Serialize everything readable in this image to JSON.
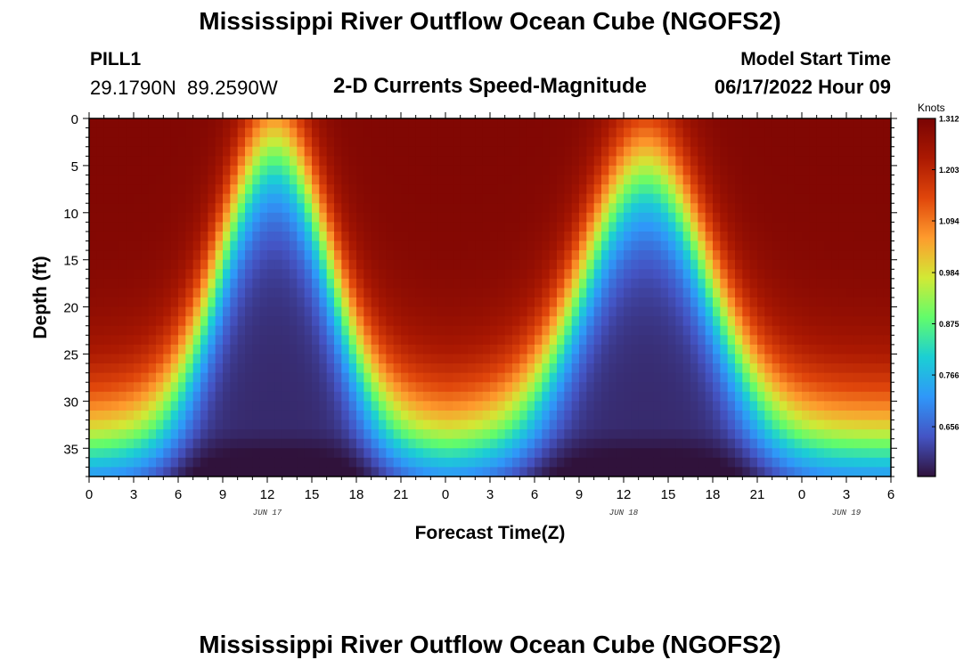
{
  "header": {
    "title": "Mississippi River Outflow Ocean Cube (NGOFS2)",
    "station_id": "PILL1",
    "lat": "29.1790N",
    "lon": "89.2590W",
    "subtitle": "2-D Currents Speed-Magnitude",
    "start_label": "Model Start Time",
    "start_value": "06/17/2022 Hour 09"
  },
  "footer": {
    "title": "Mississippi River Outflow Ocean Cube (NGOFS2)"
  },
  "colors": {
    "colormap": [
      "#30123b",
      "#4454c4",
      "#2f97f9",
      "#1bcfd4",
      "#62fc6b",
      "#d2e935",
      "#fe9b2d",
      "#e0460b",
      "#ab1902",
      "#7a0403"
    ]
  },
  "chart_data": {
    "type": "heatmap",
    "title": "2-D Currents Speed-Magnitude",
    "xlabel": "Forecast Time(Z)",
    "ylabel": "Depth (ft)",
    "x_ticks": [
      "0",
      "3",
      "6",
      "9",
      "12",
      "15",
      "18",
      "21",
      "0",
      "3",
      "6",
      "9",
      "12",
      "15",
      "18",
      "21",
      "0",
      "3",
      "6"
    ],
    "x_range_hours": [
      0,
      54
    ],
    "date_labels": [
      {
        "text": "JUN 17",
        "hour": 12
      },
      {
        "text": "JUN 18",
        "hour": 36
      },
      {
        "text": "JUN 19",
        "hour": 51
      }
    ],
    "y_ticks": [
      "0",
      "5",
      "10",
      "15",
      "20",
      "25",
      "30",
      "35"
    ],
    "ylim": [
      0,
      38
    ],
    "y_reversed": true,
    "colorbar": {
      "units": "Knots",
      "min": 0.55,
      "max": 1.312,
      "labels": [
        "1.312",
        "1.203",
        "1.094",
        "0.984",
        "0.875",
        "0.766",
        "0.656"
      ]
    },
    "grid_step": {
      "hours": 0.5,
      "depth_ft": 1
    },
    "field": {
      "description_of_pattern": "speed peaks near surface, minima near 12Z Jun 17 and 13Z Jun 18 at depth",
      "surface_max_knots": 1.312,
      "bottom_min_knots": 0.55,
      "low_speed_centers_hour": [
        12.5,
        37.5
      ],
      "period_hours": 25
    }
  }
}
